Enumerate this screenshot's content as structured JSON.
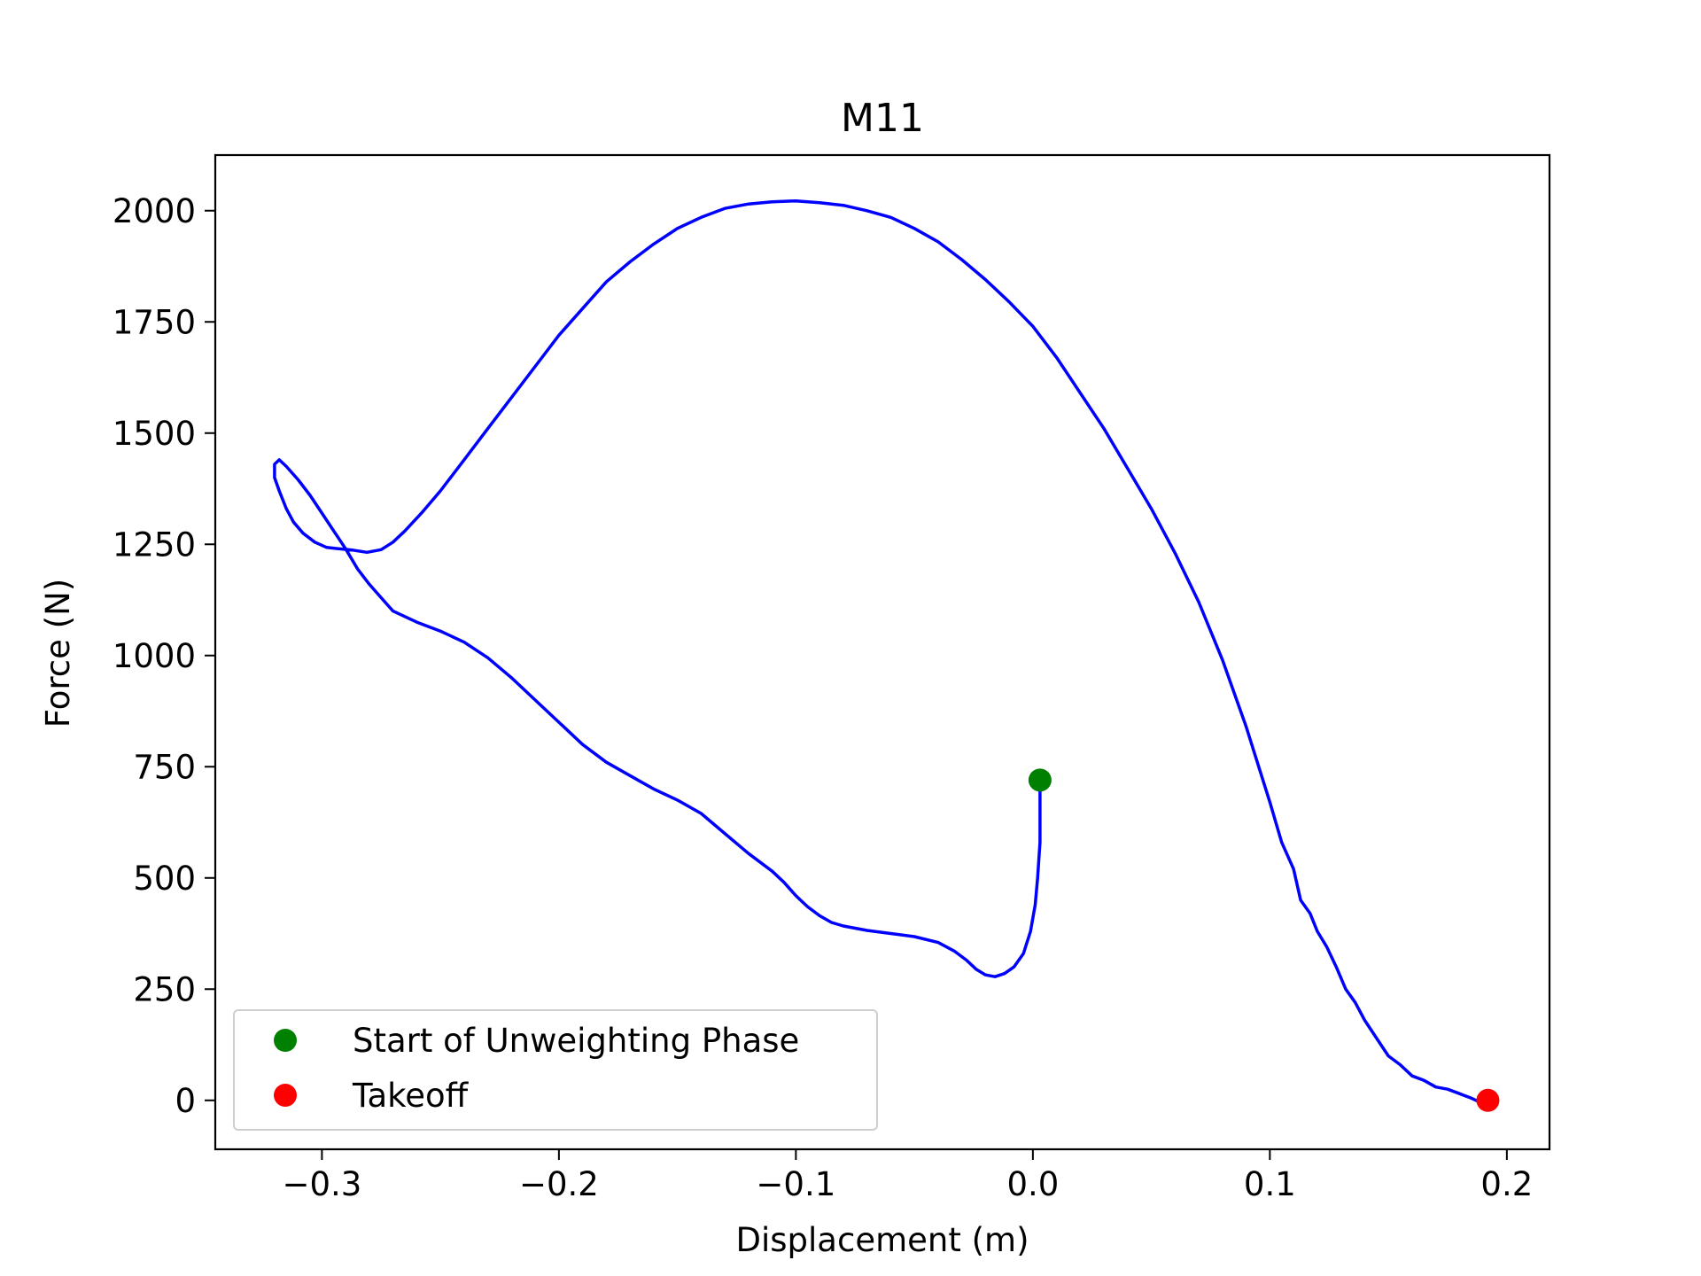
{
  "chart_data": {
    "type": "line",
    "title": "M11",
    "xlabel": "Displacement (m)",
    "ylabel": "Force (N)",
    "xlim": [
      -0.345,
      0.218
    ],
    "ylim": [
      -110,
      2125
    ],
    "x_ticks": [
      -0.3,
      -0.2,
      -0.1,
      0.0,
      0.1,
      0.2
    ],
    "x_tick_labels": [
      "−0.3",
      "−0.2",
      "−0.1",
      "0.0",
      "0.1",
      "0.2"
    ],
    "y_ticks": [
      0,
      250,
      500,
      750,
      1000,
      1250,
      1500,
      1750,
      2000
    ],
    "y_tick_labels": [
      "0",
      "250",
      "500",
      "750",
      "1000",
      "1250",
      "1500",
      "1750",
      "2000"
    ],
    "grid": false,
    "legend_position": "lower-left",
    "series": [
      {
        "color": "#0000ff",
        "points": [
          [
            0.003,
            720
          ],
          [
            0.003,
            650
          ],
          [
            0.003,
            580
          ],
          [
            0.002,
            500
          ],
          [
            0.001,
            440
          ],
          [
            -0.001,
            380
          ],
          [
            -0.004,
            330
          ],
          [
            -0.008,
            300
          ],
          [
            -0.012,
            285
          ],
          [
            -0.016,
            278
          ],
          [
            -0.02,
            282
          ],
          [
            -0.024,
            295
          ],
          [
            -0.028,
            315
          ],
          [
            -0.033,
            335
          ],
          [
            -0.04,
            355
          ],
          [
            -0.05,
            368
          ],
          [
            -0.06,
            375
          ],
          [
            -0.07,
            382
          ],
          [
            -0.08,
            392
          ],
          [
            -0.085,
            400
          ],
          [
            -0.09,
            415
          ],
          [
            -0.095,
            435
          ],
          [
            -0.1,
            460
          ],
          [
            -0.105,
            490
          ],
          [
            -0.11,
            515
          ],
          [
            -0.12,
            555
          ],
          [
            -0.13,
            600
          ],
          [
            -0.14,
            645
          ],
          [
            -0.15,
            675
          ],
          [
            -0.16,
            700
          ],
          [
            -0.17,
            730
          ],
          [
            -0.18,
            760
          ],
          [
            -0.19,
            800
          ],
          [
            -0.2,
            850
          ],
          [
            -0.21,
            900
          ],
          [
            -0.22,
            950
          ],
          [
            -0.23,
            995
          ],
          [
            -0.24,
            1030
          ],
          [
            -0.25,
            1055
          ],
          [
            -0.26,
            1075
          ],
          [
            -0.27,
            1100
          ],
          [
            -0.275,
            1130
          ],
          [
            -0.28,
            1160
          ],
          [
            -0.285,
            1195
          ],
          [
            -0.29,
            1240
          ],
          [
            -0.295,
            1280
          ],
          [
            -0.3,
            1320
          ],
          [
            -0.305,
            1360
          ],
          [
            -0.31,
            1395
          ],
          [
            -0.315,
            1425
          ],
          [
            -0.318,
            1440
          ],
          [
            -0.32,
            1430
          ],
          [
            -0.32,
            1400
          ],
          [
            -0.318,
            1370
          ],
          [
            -0.315,
            1330
          ],
          [
            -0.312,
            1300
          ],
          [
            -0.308,
            1275
          ],
          [
            -0.303,
            1255
          ],
          [
            -0.298,
            1243
          ],
          [
            -0.293,
            1240
          ],
          [
            -0.287,
            1237
          ],
          [
            -0.281,
            1232
          ],
          [
            -0.275,
            1238
          ],
          [
            -0.27,
            1255
          ],
          [
            -0.265,
            1280
          ],
          [
            -0.258,
            1320
          ],
          [
            -0.25,
            1370
          ],
          [
            -0.24,
            1440
          ],
          [
            -0.23,
            1510
          ],
          [
            -0.22,
            1580
          ],
          [
            -0.21,
            1650
          ],
          [
            -0.2,
            1720
          ],
          [
            -0.19,
            1780
          ],
          [
            -0.18,
            1840
          ],
          [
            -0.17,
            1885
          ],
          [
            -0.16,
            1925
          ],
          [
            -0.15,
            1960
          ],
          [
            -0.14,
            1985
          ],
          [
            -0.13,
            2005
          ],
          [
            -0.12,
            2015
          ],
          [
            -0.11,
            2020
          ],
          [
            -0.1,
            2022
          ],
          [
            -0.09,
            2018
          ],
          [
            -0.08,
            2012
          ],
          [
            -0.07,
            2000
          ],
          [
            -0.06,
            1985
          ],
          [
            -0.05,
            1960
          ],
          [
            -0.04,
            1930
          ],
          [
            -0.03,
            1890
          ],
          [
            -0.02,
            1845
          ],
          [
            -0.01,
            1795
          ],
          [
            0.0,
            1740
          ],
          [
            0.01,
            1670
          ],
          [
            0.02,
            1590
          ],
          [
            0.03,
            1510
          ],
          [
            0.04,
            1420
          ],
          [
            0.05,
            1330
          ],
          [
            0.06,
            1230
          ],
          [
            0.07,
            1120
          ],
          [
            0.08,
            990
          ],
          [
            0.09,
            840
          ],
          [
            0.1,
            670
          ],
          [
            0.105,
            580
          ],
          [
            0.11,
            520
          ],
          [
            0.113,
            450
          ],
          [
            0.117,
            420
          ],
          [
            0.12,
            380
          ],
          [
            0.124,
            345
          ],
          [
            0.128,
            300
          ],
          [
            0.132,
            250
          ],
          [
            0.136,
            220
          ],
          [
            0.14,
            180
          ],
          [
            0.145,
            140
          ],
          [
            0.15,
            100
          ],
          [
            0.155,
            80
          ],
          [
            0.16,
            55
          ],
          [
            0.165,
            45
          ],
          [
            0.17,
            30
          ],
          [
            0.175,
            25
          ],
          [
            0.18,
            15
          ],
          [
            0.185,
            5
          ],
          [
            0.189,
            -5
          ],
          [
            0.192,
            0
          ]
        ]
      }
    ],
    "markers": [
      {
        "label": "Start of Unweighting Phase",
        "x": 0.003,
        "y": 720,
        "color": "#008000"
      },
      {
        "label": "Takeoff",
        "x": 0.192,
        "y": 0,
        "color": "#ff0000"
      }
    ]
  }
}
